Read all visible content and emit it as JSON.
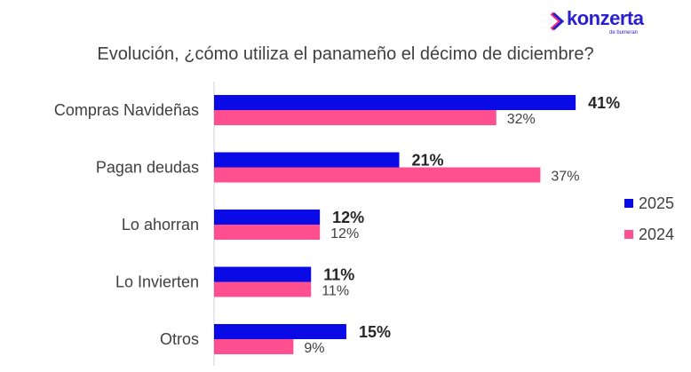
{
  "logo": {
    "name": "konzerta",
    "sub": "de bumeran"
  },
  "chart_data": {
    "type": "bar",
    "orientation": "horizontal",
    "title": "Evolución, ¿cómo utiliza el panameño el décimo de diciembre?",
    "categories": [
      "Compras Navideñas",
      "Pagan deudas",
      "Lo ahorran",
      "Lo Invierten",
      "Otros"
    ],
    "series": [
      {
        "name": "2025",
        "color": "#0a0ae6",
        "values": [
          41,
          21,
          12,
          11,
          15
        ],
        "labels": [
          "41%",
          "21%",
          "12%",
          "11%",
          "15%"
        ]
      },
      {
        "name": "2024",
        "color": "#ff4f8e",
        "values": [
          32,
          37,
          12,
          11,
          9
        ],
        "labels": [
          "32%",
          "37%",
          "12%",
          "11%",
          "9%"
        ]
      }
    ],
    "legend": "right",
    "grid": false
  }
}
